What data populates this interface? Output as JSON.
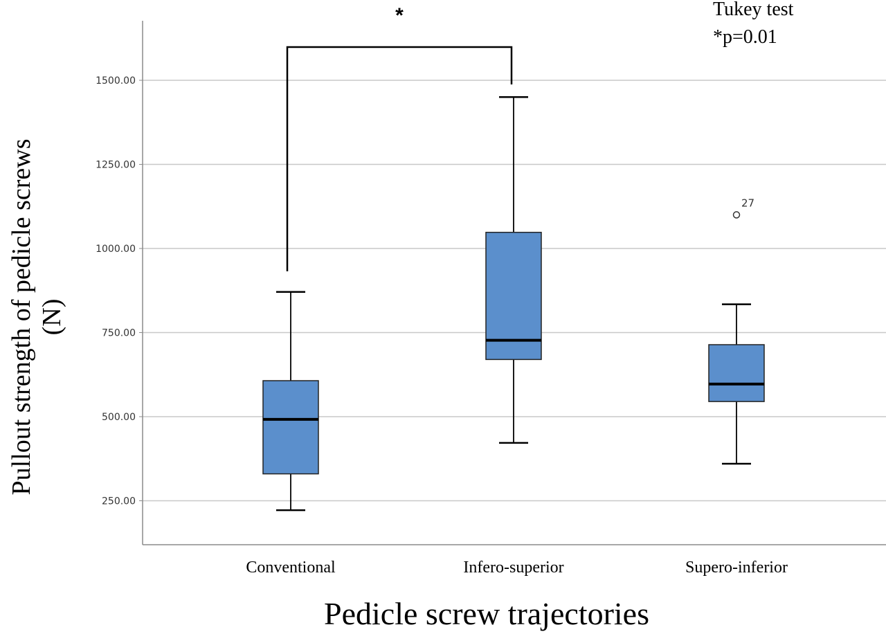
{
  "chart_data": {
    "type": "box",
    "xlabel": "Pedicle screw trajectories",
    "ylabel": "Pullout strength of pedicle screws (N)",
    "ylim": [
      180,
      1640
    ],
    "yticks": [
      250,
      500,
      750,
      1000,
      1250,
      1500
    ],
    "ytick_labels": [
      "250.00",
      "500.00",
      "750.00",
      "1000.00",
      "1250.00",
      "1500.00"
    ],
    "grid": true,
    "box_color": "#5b8fcc",
    "categories": [
      "Conventional",
      "Infero-superior",
      "Supero-inferior"
    ],
    "boxes": [
      {
        "category": "Conventional",
        "whisker_low": 222,
        "q1": 330,
        "median": 492,
        "q3": 607,
        "whisker_high": 871,
        "outliers": []
      },
      {
        "category": "Infero-superior",
        "whisker_low": 422,
        "q1": 670,
        "median": 727,
        "q3": 1048,
        "whisker_high": 1450,
        "outliers": []
      },
      {
        "category": "Supero-inferior",
        "whisker_low": 360,
        "q1": 545,
        "median": 597,
        "q3": 714,
        "whisker_high": 834,
        "outliers": [
          {
            "value": 1100,
            "label": "27"
          }
        ]
      }
    ],
    "annotations": {
      "test_name": "Tukey test",
      "p_value": "*p=0.01",
      "significance_marker": "*",
      "comparison": [
        "Conventional",
        "Infero-superior"
      ]
    }
  }
}
